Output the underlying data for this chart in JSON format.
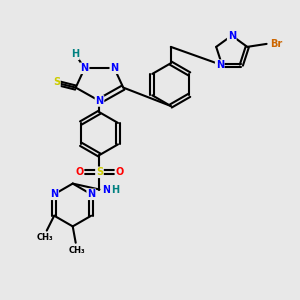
{
  "bg_color": "#e8e8e8",
  "bond_color": "#000000",
  "bond_lw": 1.5,
  "atom_colors": {
    "N": "#0000ff",
    "S": "#cccc00",
    "O": "#ff0000",
    "H": "#008080",
    "Br": "#cc6600",
    "C": "#000000"
  },
  "font_size": 7
}
